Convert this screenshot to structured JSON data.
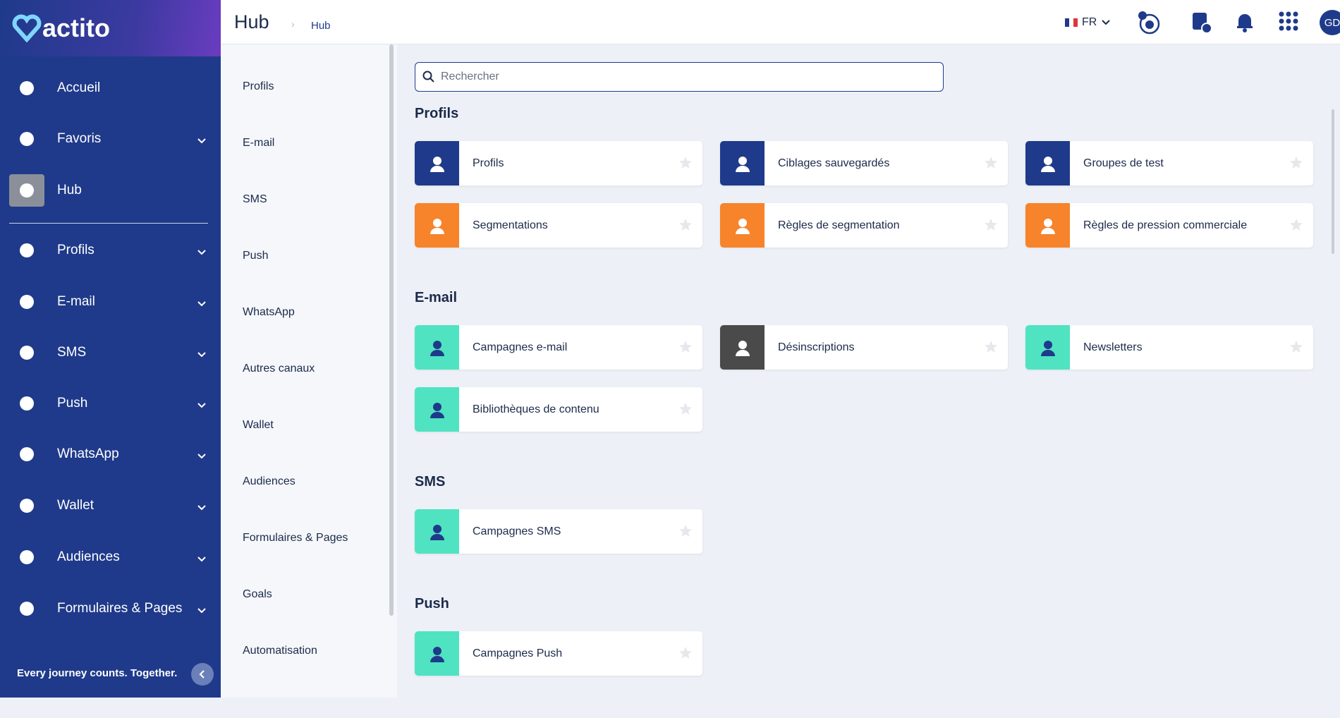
{
  "brand": {
    "logo": "actito",
    "tagline": "Every journey counts. Together."
  },
  "header": {
    "title": "Hub",
    "breadcrumb": "Hub",
    "language": "FR",
    "avatar": "GD"
  },
  "sidebar": {
    "items": [
      {
        "label": "Accueil",
        "submenu": false,
        "active": false
      },
      {
        "label": "Favoris",
        "submenu": true,
        "active": false
      },
      {
        "label": "Hub",
        "submenu": false,
        "active": true
      },
      {
        "label": "Profils",
        "submenu": true,
        "active": false
      },
      {
        "label": "E-mail",
        "submenu": true,
        "active": false
      },
      {
        "label": "SMS",
        "submenu": true,
        "active": false
      },
      {
        "label": "Push",
        "submenu": true,
        "active": false
      },
      {
        "label": "WhatsApp",
        "submenu": true,
        "active": false
      },
      {
        "label": "Wallet",
        "submenu": true,
        "active": false
      },
      {
        "label": "Audiences",
        "submenu": true,
        "active": false
      },
      {
        "label": "Formulaires & Pages",
        "submenu": true,
        "active": false
      }
    ]
  },
  "subnav": [
    "Profils",
    "E-mail",
    "SMS",
    "Push",
    "WhatsApp",
    "Autres canaux",
    "Wallet",
    "Audiences",
    "Formulaires & Pages",
    "Goals",
    "Automatisation"
  ],
  "search": {
    "placeholder": "Rechercher"
  },
  "sections": [
    {
      "title": "Profils",
      "cards": [
        {
          "label": "Profils",
          "color": "#1f3a8a"
        },
        {
          "label": "Ciblages sauvegardés",
          "color": "#1f3a8a"
        },
        {
          "label": "Groupes de test",
          "color": "#1f3a8a"
        },
        {
          "label": "Segmentations",
          "color": "#f7832a"
        },
        {
          "label": "Règles de segmentation",
          "color": "#f7832a"
        },
        {
          "label": "Règles de pression commerciale",
          "color": "#f7832a"
        }
      ]
    },
    {
      "title": "E-mail",
      "cards": [
        {
          "label": "Campagnes e-mail",
          "color": "#4fe3c1"
        },
        {
          "label": "Désinscriptions",
          "color": "#4a4a4a"
        },
        {
          "label": "Newsletters",
          "color": "#4fe3c1"
        },
        {
          "label": "Bibliothèques de contenu",
          "color": "#4fe3c1"
        }
      ]
    },
    {
      "title": "SMS",
      "cards": [
        {
          "label": "Campagnes SMS",
          "color": "#4fe3c1"
        }
      ]
    },
    {
      "title": "Push",
      "cards": [
        {
          "label": "Campagnes Push",
          "color": "#4fe3c1"
        }
      ]
    }
  ]
}
